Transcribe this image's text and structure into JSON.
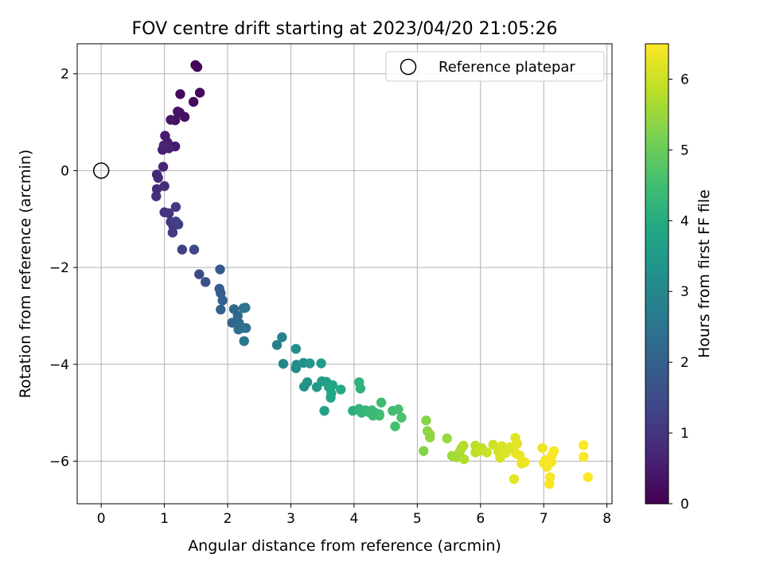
{
  "chart_data": {
    "type": "scatter",
    "title": "FOV centre drift starting at 2023/04/20 21:05:26",
    "xlabel": "Angular distance from reference (arcmin)",
    "ylabel": "Rotation from reference (arcmin)",
    "xlim": [
      -0.38,
      8.08
    ],
    "ylim": [
      -6.88,
      2.62
    ],
    "xticks": [
      "0",
      "1",
      "2",
      "3",
      "4",
      "5",
      "6",
      "7",
      "8"
    ],
    "yticks": [
      "2",
      "0",
      "−2",
      "−4",
      "−6"
    ],
    "grid": true,
    "legend": {
      "position": "top-right",
      "entries": [
        {
          "label": "Reference platepar",
          "marker": "open-circle"
        }
      ]
    },
    "reference_point": {
      "x": 0,
      "y": 0
    },
    "colorbar": {
      "label": "Hours from first FF file",
      "colormap": "viridis",
      "range": [
        0,
        6.5
      ],
      "ticks": [
        "0",
        "1",
        "2",
        "3",
        "4",
        "5",
        "6"
      ]
    },
    "point_color": "#000000",
    "points": [
      [
        1.49,
        2.18,
        0.02
      ],
      [
        1.52,
        2.14,
        0.05
      ],
      [
        1.56,
        1.61,
        0.09
      ],
      [
        1.25,
        1.58,
        0.14
      ],
      [
        1.46,
        1.42,
        0.18
      ],
      [
        1.24,
        1.2,
        0.22
      ],
      [
        1.32,
        1.11,
        0.27
      ],
      [
        1.17,
        1.04,
        0.31
      ],
      [
        1.21,
        1.22,
        0.36
      ],
      [
        1.1,
        1.05,
        0.4
      ],
      [
        1.17,
        0.5,
        0.45
      ],
      [
        1.01,
        0.72,
        0.49
      ],
      [
        1.05,
        0.58,
        0.53
      ],
      [
        0.97,
        0.43,
        0.57
      ],
      [
        1.07,
        0.46,
        0.61
      ],
      [
        0.99,
        0.52,
        0.65
      ],
      [
        0.98,
        0.08,
        0.69
      ],
      [
        0.88,
        -0.08,
        0.73
      ],
      [
        0.9,
        -0.15,
        0.77
      ],
      [
        0.88,
        -0.38,
        0.81
      ],
      [
        1.0,
        -0.32,
        0.85
      ],
      [
        0.87,
        -0.53,
        0.89
      ],
      [
        1.0,
        -0.86,
        0.93
      ],
      [
        1.07,
        -0.88,
        0.97
      ],
      [
        1.1,
        -1.06,
        1.01
      ],
      [
        1.14,
        -1.15,
        1.05
      ],
      [
        1.18,
        -0.75,
        1.09
      ],
      [
        1.13,
        -1.28,
        1.14
      ],
      [
        1.22,
        -1.11,
        1.18
      ],
      [
        1.18,
        -1.05,
        1.22
      ],
      [
        1.28,
        -1.63,
        1.26
      ],
      [
        1.47,
        -1.63,
        1.35
      ],
      [
        1.55,
        -2.14,
        1.45
      ],
      [
        1.65,
        -2.3,
        1.58
      ],
      [
        1.88,
        -2.04,
        1.82
      ],
      [
        1.87,
        -2.44,
        1.88
      ],
      [
        1.89,
        -2.53,
        1.93
      ],
      [
        1.92,
        -2.68,
        1.98
      ],
      [
        1.89,
        -2.87,
        2.04
      ],
      [
        2.07,
        -3.14,
        2.12
      ],
      [
        2.1,
        -2.86,
        2.17
      ],
      [
        2.16,
        -3.0,
        2.22
      ],
      [
        2.18,
        -3.15,
        2.27
      ],
      [
        2.17,
        -3.28,
        2.32
      ],
      [
        2.23,
        -3.25,
        2.37
      ],
      [
        2.29,
        -3.25,
        2.42
      ],
      [
        2.25,
        -2.84,
        2.47
      ],
      [
        2.28,
        -2.83,
        2.52
      ],
      [
        2.26,
        -3.52,
        2.57
      ],
      [
        2.78,
        -3.6,
        2.78
      ],
      [
        2.86,
        -3.44,
        2.85
      ],
      [
        2.88,
        -3.99,
        2.95
      ],
      [
        3.08,
        -4.08,
        3.08
      ],
      [
        3.09,
        -4.01,
        3.12
      ],
      [
        3.08,
        -3.68,
        3.16
      ],
      [
        3.2,
        -3.97,
        3.22
      ],
      [
        3.21,
        -4.46,
        3.28
      ],
      [
        3.26,
        -4.37,
        3.34
      ],
      [
        3.3,
        -3.98,
        3.4
      ],
      [
        3.41,
        -4.47,
        3.46
      ],
      [
        3.48,
        -3.98,
        3.52
      ],
      [
        3.49,
        -4.35,
        3.58
      ],
      [
        3.56,
        -4.36,
        3.64
      ],
      [
        3.53,
        -4.96,
        3.7
      ],
      [
        3.6,
        -4.47,
        3.76
      ],
      [
        3.63,
        -4.69,
        3.8
      ],
      [
        3.64,
        -4.6,
        3.84
      ],
      [
        3.66,
        -4.43,
        3.88
      ],
      [
        3.79,
        -4.52,
        3.94
      ],
      [
        3.98,
        -4.96,
        4.12
      ],
      [
        4.08,
        -4.37,
        4.16
      ],
      [
        4.1,
        -4.5,
        4.19
      ],
      [
        4.12,
        -5.0,
        4.22
      ],
      [
        4.08,
        -4.92,
        4.25
      ],
      [
        4.18,
        -4.95,
        4.28
      ],
      [
        4.25,
        -5.0,
        4.31
      ],
      [
        4.28,
        -4.95,
        4.34
      ],
      [
        4.33,
        -5.0,
        4.37
      ],
      [
        4.3,
        -5.06,
        4.4
      ],
      [
        4.4,
        -5.03,
        4.43
      ],
      [
        4.43,
        -4.79,
        4.46
      ],
      [
        4.4,
        -5.06,
        4.49
      ],
      [
        4.61,
        -4.96,
        4.52
      ],
      [
        4.65,
        -5.28,
        4.55
      ],
      [
        4.7,
        -4.93,
        4.58
      ],
      [
        4.75,
        -5.1,
        4.61
      ],
      [
        5.1,
        -5.79,
        5.28
      ],
      [
        5.14,
        -5.16,
        5.32
      ],
      [
        5.16,
        -5.38,
        5.35
      ],
      [
        5.2,
        -5.51,
        5.38
      ],
      [
        5.2,
        -5.45,
        5.41
      ],
      [
        5.47,
        -5.53,
        5.48
      ],
      [
        5.55,
        -5.89,
        5.55
      ],
      [
        5.62,
        -5.92,
        5.6
      ],
      [
        5.67,
        -5.81,
        5.64
      ],
      [
        5.7,
        -5.73,
        5.68
      ],
      [
        5.74,
        -5.96,
        5.72
      ],
      [
        5.73,
        -5.68,
        5.76
      ],
      [
        5.92,
        -5.68,
        5.82
      ],
      [
        5.92,
        -5.82,
        5.86
      ],
      [
        6.02,
        -5.73,
        5.9
      ],
      [
        6.0,
        -5.78,
        5.94
      ],
      [
        6.1,
        -5.82,
        5.98
      ],
      [
        6.2,
        -5.66,
        6.02
      ],
      [
        6.28,
        -5.8,
        6.06
      ],
      [
        6.31,
        -5.93,
        6.1
      ],
      [
        6.34,
        -5.69,
        6.14
      ],
      [
        6.4,
        -5.83,
        6.18
      ],
      [
        6.47,
        -5.71,
        6.2
      ],
      [
        6.55,
        -5.52,
        6.22
      ],
      [
        6.58,
        -5.64,
        6.24
      ],
      [
        6.53,
        -6.37,
        6.26
      ],
      [
        6.56,
        -5.84,
        6.28
      ],
      [
        6.62,
        -5.88,
        6.3
      ],
      [
        6.65,
        -6.05,
        6.32
      ],
      [
        6.7,
        -6.02,
        6.34
      ],
      [
        6.98,
        -5.73,
        6.36
      ],
      [
        7.0,
        -6.04,
        6.38
      ],
      [
        7.03,
        -5.98,
        6.4
      ],
      [
        7.05,
        -6.12,
        6.41
      ],
      [
        7.08,
        -5.97,
        6.42
      ],
      [
        7.1,
        -6.33,
        6.43
      ],
      [
        7.12,
        -6.02,
        6.44
      ],
      [
        7.09,
        -6.47,
        6.45
      ],
      [
        7.13,
        -5.88,
        6.46
      ],
      [
        7.16,
        -5.79,
        6.47
      ],
      [
        7.63,
        -5.67,
        6.48
      ],
      [
        7.63,
        -5.91,
        6.49
      ],
      [
        7.7,
        -6.33,
        6.5
      ]
    ]
  }
}
